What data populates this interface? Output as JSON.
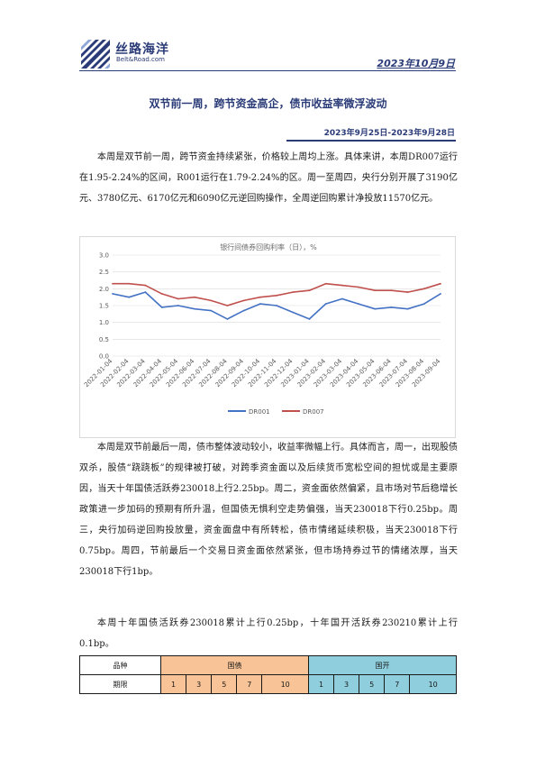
{
  "header": {
    "logo_cn": "丝路海洋",
    "logo_en": "Belt&Road.com",
    "date": "2023年10月9日"
  },
  "title": "双节前一周，跨节资金高企，债市收益率微浮波动",
  "date_range": "2023年9月25日-2023年9月28日",
  "paragraphs": {
    "p1": "本周是双节前一周，跨节资金持续紧张，价格较上周均上涨。具体来讲，本周DR007运行在1.95-2.24%的区间，R001运行在1.79-2.24%的区。周一至周四，央行分别开展了3190亿元、3780亿元、6170亿元和6090亿元逆回购操作，全周逆回购累计净投放11570亿元。",
    "p2": "本周是双节前最后一周，债市整体波动较小，收益率微幅上行。具体而言，周一，出现股债双杀，股债“跷跷板”的规律被打破，对跨季资金面以及后续货币宽松空间的担忧或是主要原因，当天十年国债活跃券230018上行2.25bp。周二，资金面依然偏紧，且市场对节后稳增长政策进一步加码的预期有所升温，但国债无惧利空走势偏强，当天230018下行0.25bp。周三，央行加码逆回购投放量，资金面盘中有所转松，债市情绪延续积极，当天230018下行0.75bp。周四，节前最后一个交易日资金面依然紧张，但市场持券过节的情绪浓厚，当天230018下行1bp。",
    "p3": "本周十年国债活跃券230018累计上行0.25bp，十年国开活跃券230210累计上行0.1bp。"
  },
  "chart_data": {
    "type": "line",
    "title": "银行间债券回购利率（日），%",
    "xlabel": "",
    "ylabel": "",
    "ylim": [
      0,
      3
    ],
    "yticks": [
      "0.0",
      "0.5",
      "1.0",
      "1.5",
      "2.0",
      "2.5",
      "3.0"
    ],
    "x": [
      "2022-01-04",
      "2022-02-04",
      "2022-03-04",
      "2022-04-04",
      "2022-05-04",
      "2022-06-04",
      "2022-07-04",
      "2022-08-04",
      "2022-09-04",
      "2022-10-04",
      "2022-11-04",
      "2022-12-04",
      "2023-01-04",
      "2023-02-04",
      "2023-03-04",
      "2023-04-04",
      "2023-05-04",
      "2023-06-04",
      "2023-07-04",
      "2023-08-04",
      "2023-09-04"
    ],
    "series": [
      {
        "name": "DR001",
        "color": "#4472c4",
        "values": [
          1.85,
          1.75,
          1.9,
          1.45,
          1.5,
          1.4,
          1.35,
          1.1,
          1.35,
          1.55,
          1.5,
          1.3,
          1.1,
          1.55,
          1.7,
          1.55,
          1.4,
          1.45,
          1.4,
          1.55,
          1.85
        ]
      },
      {
        "name": "DR007",
        "color": "#c0504d",
        "values": [
          2.15,
          2.15,
          2.1,
          1.85,
          1.7,
          1.75,
          1.65,
          1.5,
          1.65,
          1.75,
          1.8,
          1.9,
          1.95,
          2.15,
          2.1,
          2.05,
          1.95,
          1.95,
          1.9,
          2.0,
          2.15
        ]
      }
    ],
    "legend": "bottom",
    "grid": true
  },
  "table": {
    "row1": {
      "label": "品种",
      "gz": "国债",
      "gk": "国开"
    },
    "row2": {
      "label": "期限",
      "gz": [
        "1",
        "3",
        "5",
        "7",
        "10"
      ],
      "gk": [
        "1",
        "3",
        "5",
        "7",
        "10"
      ]
    }
  }
}
